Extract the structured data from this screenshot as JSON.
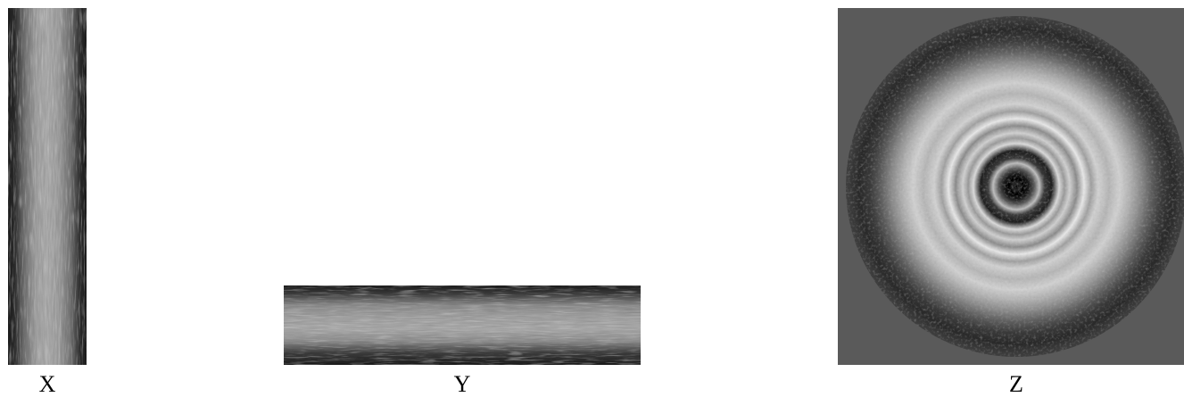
{
  "panels": [
    {
      "id": "x",
      "label": "X"
    },
    {
      "id": "y",
      "label": "Y"
    },
    {
      "id": "z",
      "label": "Z"
    }
  ],
  "colors": {
    "background": "#ffffff",
    "strip_dark": "#1a1a1a",
    "strip_light": "#9a9a9a",
    "z_backdrop": "#5a5a5a"
  }
}
